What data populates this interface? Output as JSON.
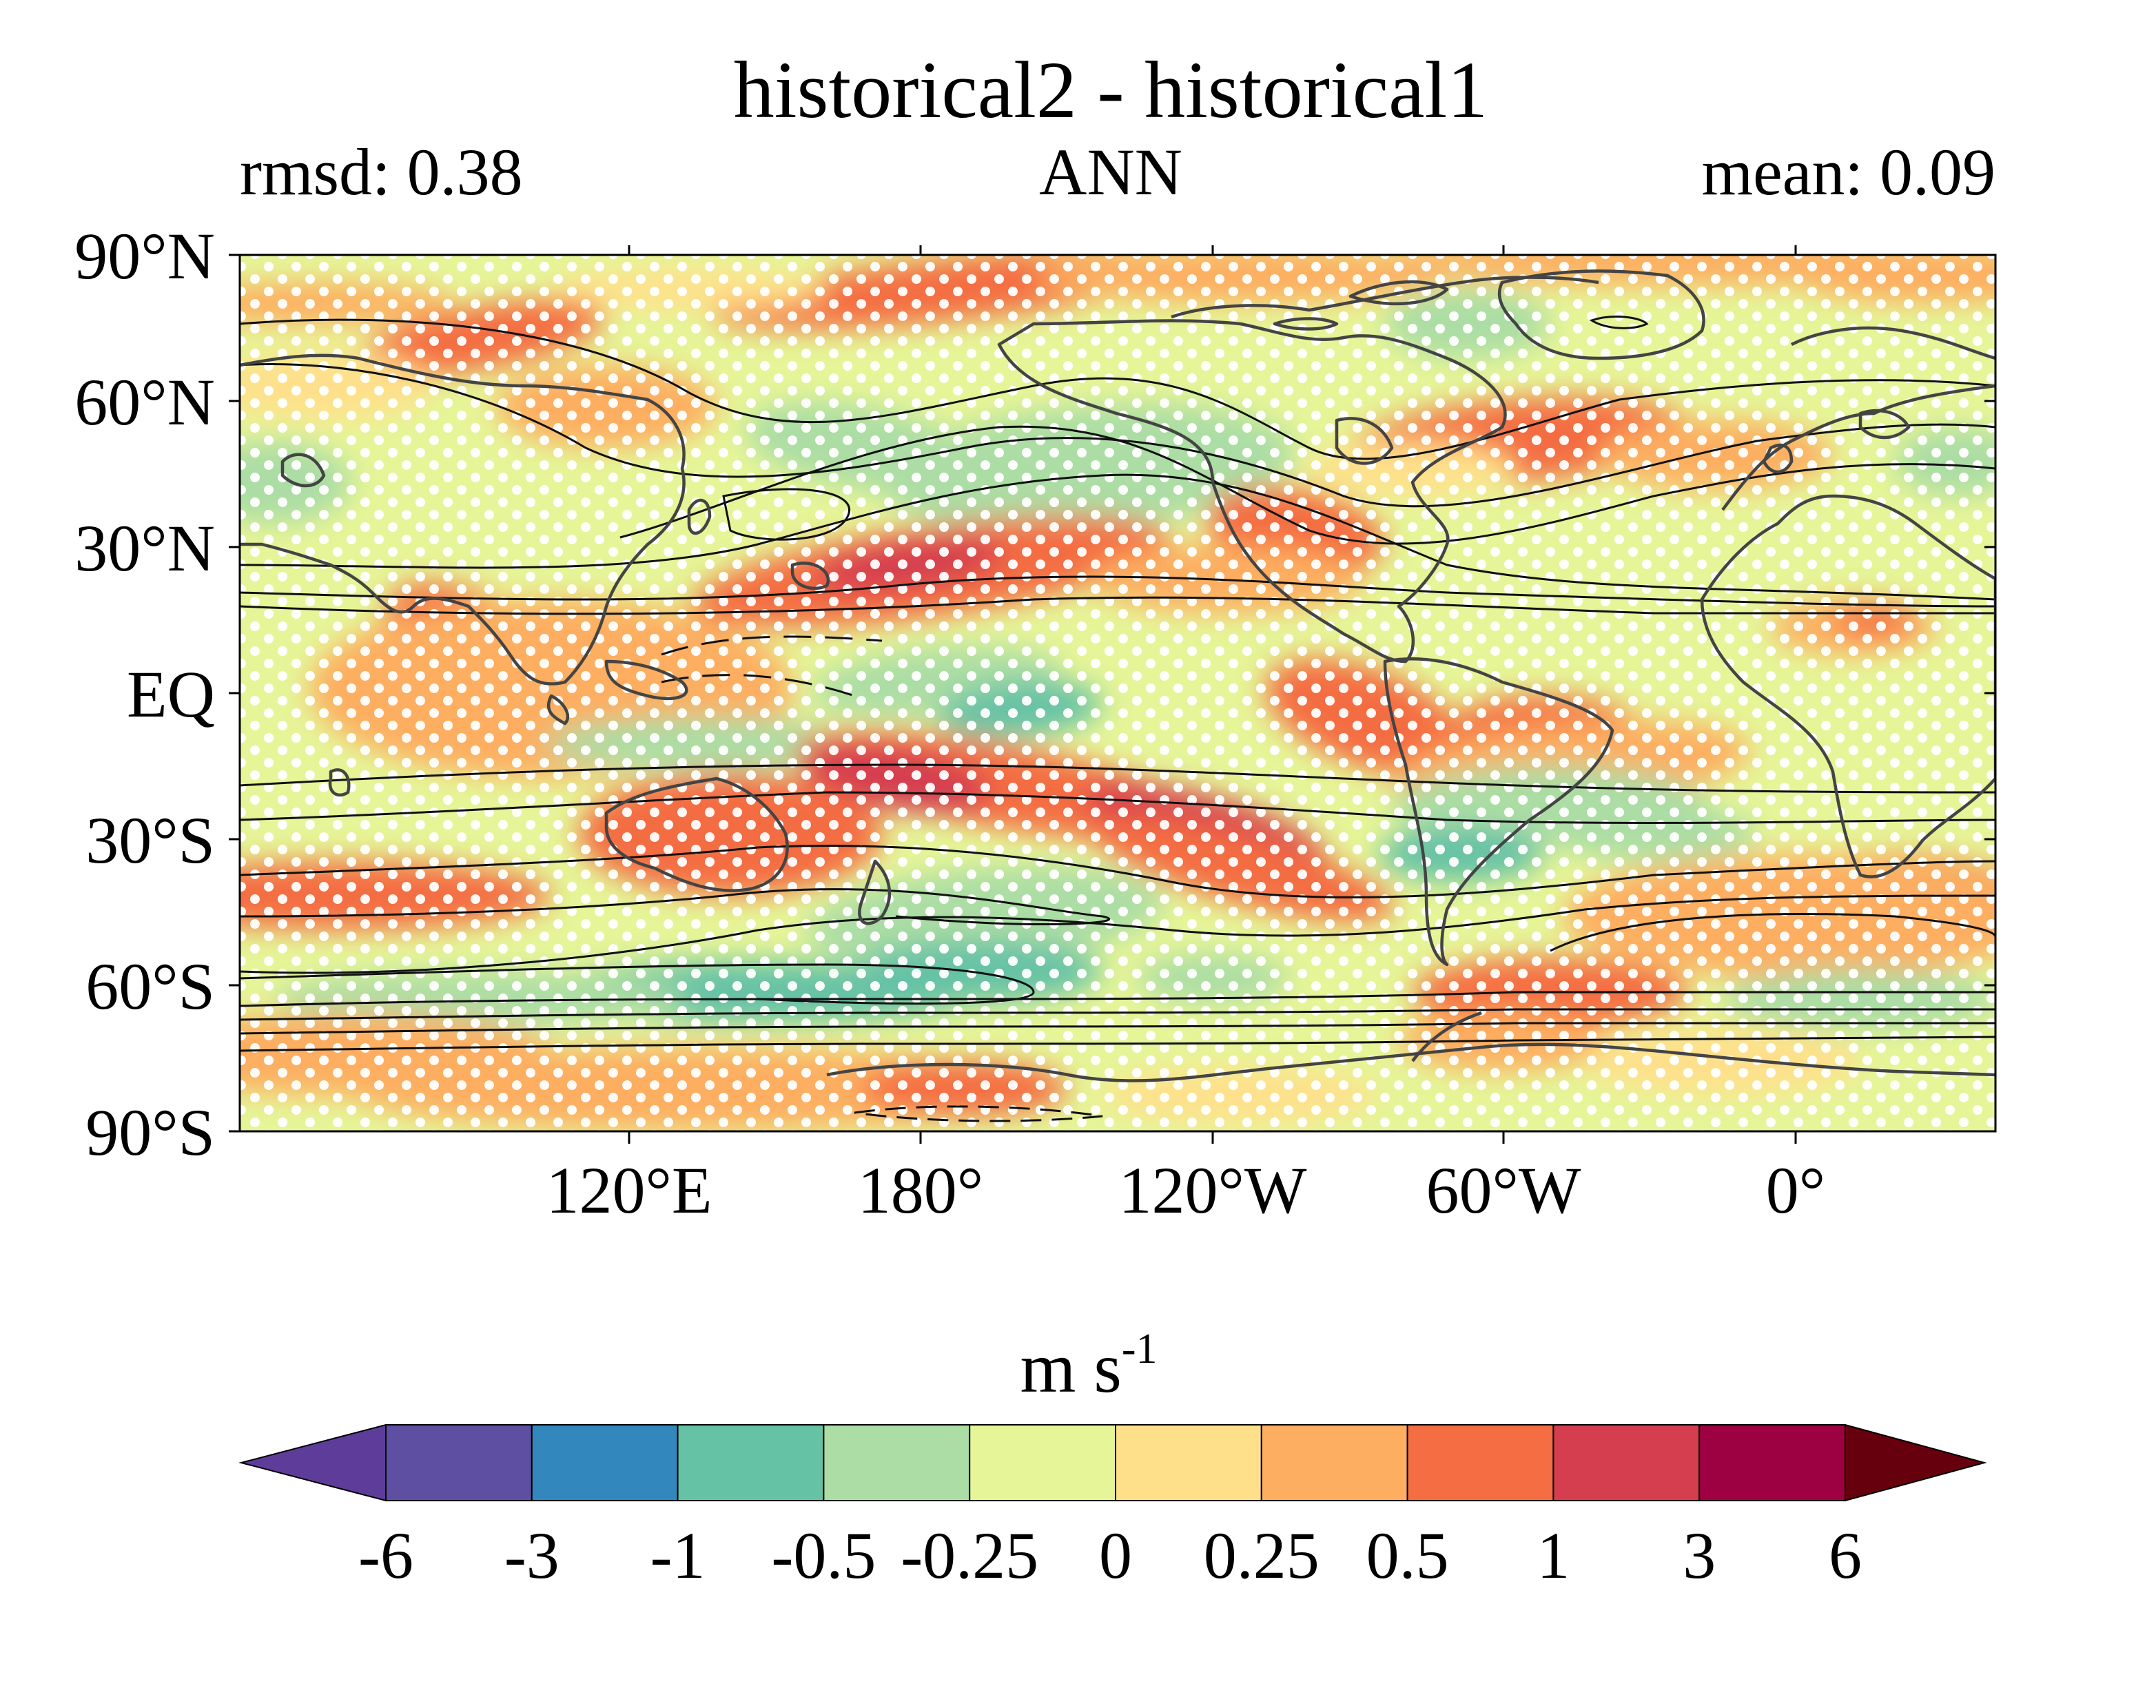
{
  "title": "historical2 - historical1",
  "left_label": "rmsd: 0.38",
  "center_label": "ANN",
  "right_label": "mean: 0.09",
  "map": {
    "lat_labels": [
      "90°N",
      "60°N",
      "30°N",
      "EQ",
      "30°S",
      "60°S",
      "90°S"
    ],
    "lon_labels": [
      "120°E",
      "180°",
      "120°W",
      "60°W",
      "0°"
    ],
    "stippling": true,
    "contours": "black",
    "coastlines": "gray"
  },
  "colorbar": {
    "unit_base": "m s",
    "unit_exp": "-1",
    "levels": [
      "-6",
      "-3",
      "-1",
      "-0.5",
      "-0.25",
      "0",
      "0.25",
      "0.5",
      "1",
      "3",
      "6"
    ],
    "colors": [
      "#5e3c99",
      "#5e4fa2",
      "#3288bd",
      "#66c2a5",
      "#abdda4",
      "#e6f598",
      "#fee08b",
      "#fdae61",
      "#f46d43",
      "#d53e4f",
      "#9e0142",
      "#67000d"
    ]
  }
}
